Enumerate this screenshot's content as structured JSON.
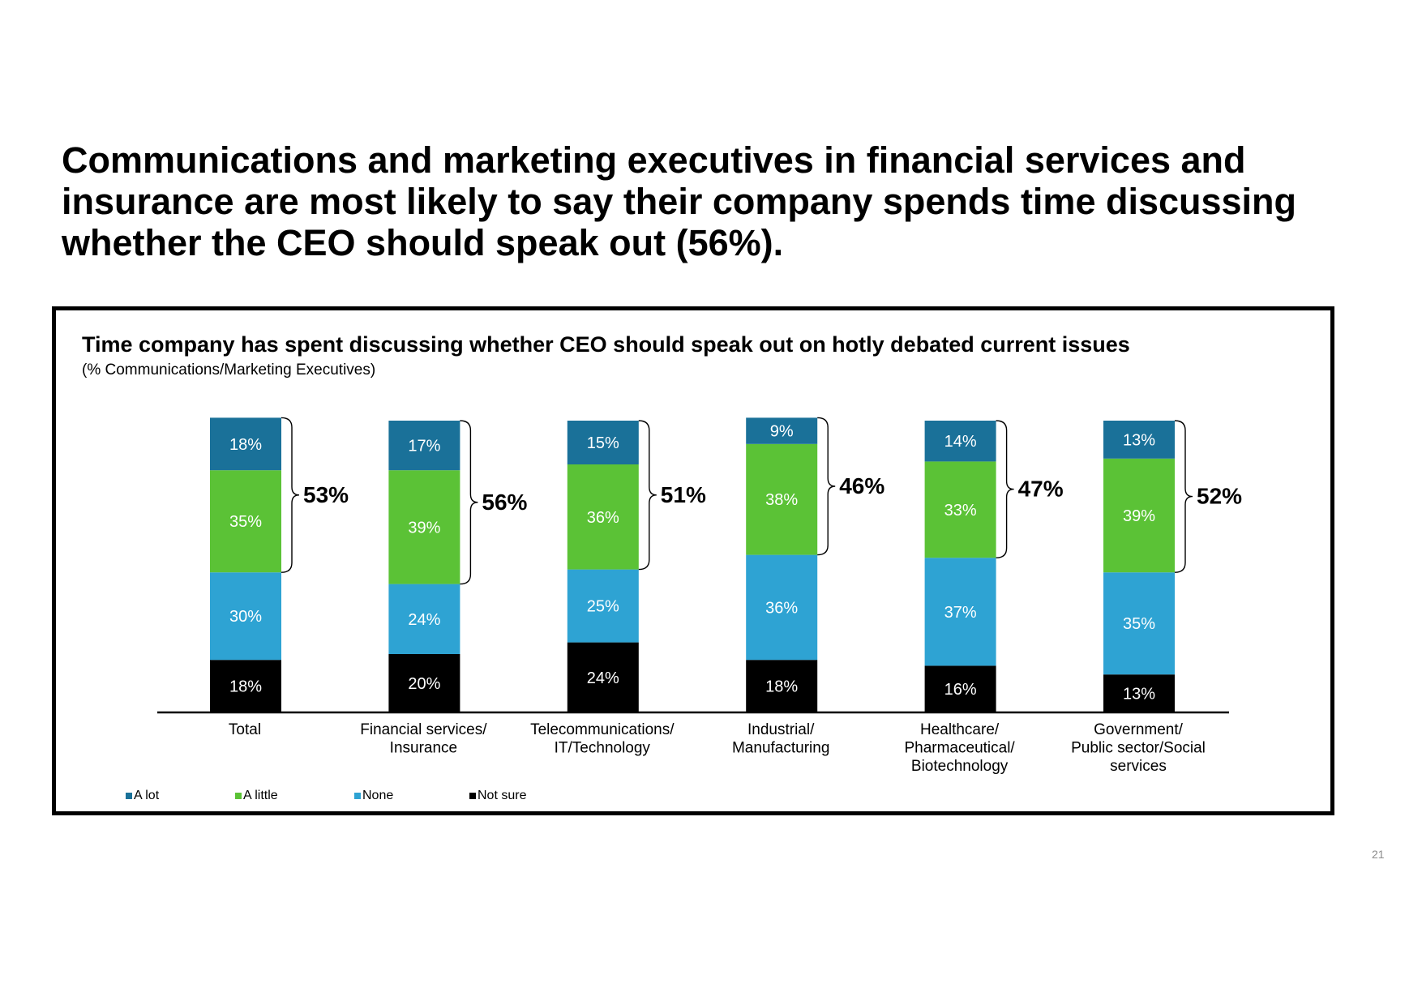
{
  "headline": "Communications and marketing executives in financial services and insurance are most likely to say their company spends time discussing whether the CEO should speak out (56%).",
  "page_number": "21",
  "colors": {
    "a_lot": "#1a7199",
    "a_little": "#5bc236",
    "none": "#2ea3d3",
    "not_sure": "#000000"
  },
  "chart_data": {
    "type": "bar",
    "stacked": true,
    "title": "Time company has spent discussing whether CEO should speak out on hotly debated current issues",
    "subtitle": "(% Communications/Marketing Executives)",
    "categories": [
      [
        "Total"
      ],
      [
        "Financial services/",
        "Insurance"
      ],
      [
        "Telecommunications/",
        "IT/Technology"
      ],
      [
        "Industrial/",
        "Manufacturing"
      ],
      [
        "Healthcare/",
        "Pharmaceutical/",
        "Biotechnology"
      ],
      [
        "Government/",
        "Public sector/Social",
        "services"
      ]
    ],
    "series": [
      {
        "name": "Not sure",
        "color": "#000000",
        "values": [
          18,
          20,
          24,
          18,
          16,
          13
        ]
      },
      {
        "name": "None",
        "color": "#2ea3d3",
        "values": [
          30,
          24,
          25,
          36,
          37,
          35
        ]
      },
      {
        "name": "A little",
        "color": "#5bc236",
        "values": [
          35,
          39,
          36,
          38,
          33,
          39
        ]
      },
      {
        "name": "A lot",
        "color": "#1a7199",
        "values": [
          18,
          17,
          15,
          9,
          14,
          13
        ]
      }
    ],
    "bracket_totals": [
      "53%",
      "56%",
      "51%",
      "46%",
      "47%",
      "52%"
    ],
    "legend": [
      {
        "name": "A lot",
        "color": "#1a7199"
      },
      {
        "name": "A little",
        "color": "#5bc236"
      },
      {
        "name": "None",
        "color": "#2ea3d3"
      },
      {
        "name": "Not sure",
        "color": "#000000"
      }
    ],
    "legend_position": "bottom-left",
    "value_suffix": "%"
  }
}
